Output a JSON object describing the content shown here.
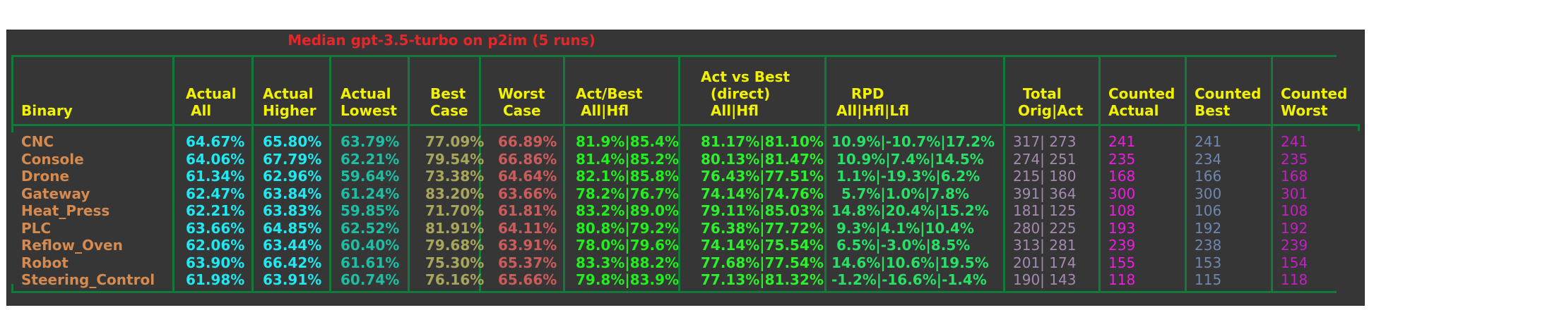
{
  "title": "Median gpt-3.5-turbo on p2im (5 runs)",
  "headers": [
    [
      "Binary"
    ],
    [
      "Actual",
      " All"
    ],
    [
      "Actual",
      "Higher"
    ],
    [
      "Actual",
      "Lowest"
    ],
    [
      " Best",
      " Case"
    ],
    [
      "Worst",
      " Case"
    ],
    [
      "Act/Best",
      " All|Hfl"
    ],
    [
      "Act vs Best",
      "  (direct)",
      "  All|Hfl"
    ],
    [
      "    RPD",
      " All|Hfl|Lfl"
    ],
    [
      "  Total",
      " Orig|Act"
    ],
    [
      "Counted",
      "Actual"
    ],
    [
      "Counted",
      "Best"
    ],
    [
      "Counted",
      "Worst"
    ]
  ],
  "rows": [
    {
      "binary": "CNC",
      "actual_all": "64.67%",
      "actual_higher": "65.80%",
      "actual_lowest": "63.79%",
      "best_case": "77.09%",
      "worst_case": "66.89%",
      "act_best": "81.9%|85.4%",
      "act_vs_best": "81.17%|81.10%",
      "rpd": "10.9%|-10.7%|17.2%",
      "total": "317| 273",
      "counted_actual": "241",
      "counted_best": "241",
      "counted_worst": "241"
    },
    {
      "binary": "Console",
      "actual_all": "64.06%",
      "actual_higher": "67.79%",
      "actual_lowest": "62.21%",
      "best_case": "79.54%",
      "worst_case": "66.86%",
      "act_best": "81.4%|85.2%",
      "act_vs_best": "80.13%|81.47%",
      "rpd": " 10.9%|7.4%|14.5%",
      "total": "274| 251",
      "counted_actual": "235",
      "counted_best": "234",
      "counted_worst": "235"
    },
    {
      "binary": "Drone",
      "actual_all": "61.34%",
      "actual_higher": "62.96%",
      "actual_lowest": "59.64%",
      "best_case": "73.38%",
      "worst_case": "64.64%",
      "act_best": "82.1%|85.8%",
      "act_vs_best": "76.43%|77.51%",
      "rpd": " 1.1%|-19.3%|6.2%",
      "total": "215| 180",
      "counted_actual": "168",
      "counted_best": "166",
      "counted_worst": "168"
    },
    {
      "binary": "Gateway",
      "actual_all": "62.47%",
      "actual_higher": "63.84%",
      "actual_lowest": "61.24%",
      "best_case": "83.20%",
      "worst_case": "63.66%",
      "act_best": "78.2%|76.7%",
      "act_vs_best": "74.14%|74.76%",
      "rpd": "  5.7%|1.0%|7.8%",
      "total": "391| 364",
      "counted_actual": "300",
      "counted_best": "300",
      "counted_worst": "301"
    },
    {
      "binary": "Heat_Press",
      "actual_all": "62.21%",
      "actual_higher": "63.83%",
      "actual_lowest": "59.85%",
      "best_case": "71.70%",
      "worst_case": "61.81%",
      "act_best": "83.2%|89.0%",
      "act_vs_best": "79.11%|85.03%",
      "rpd": "14.8%|20.4%|15.2%",
      "total": "181| 125",
      "counted_actual": "108",
      "counted_best": "106",
      "counted_worst": "108"
    },
    {
      "binary": "PLC",
      "actual_all": "63.66%",
      "actual_higher": "64.85%",
      "actual_lowest": "62.52%",
      "best_case": "81.91%",
      "worst_case": "64.11%",
      "act_best": "80.8%|79.2%",
      "act_vs_best": "76.38%|77.72%",
      "rpd": " 9.3%|4.1%|10.4%",
      "total": "280| 225",
      "counted_actual": "193",
      "counted_best": "192",
      "counted_worst": "192"
    },
    {
      "binary": "Reflow_Oven",
      "actual_all": "62.06%",
      "actual_higher": "63.44%",
      "actual_lowest": "60.40%",
      "best_case": "79.68%",
      "worst_case": "63.91%",
      "act_best": "78.0%|79.6%",
      "act_vs_best": "74.14%|75.54%",
      "rpd": " 6.5%|-3.0%|8.5%",
      "total": "313| 281",
      "counted_actual": "239",
      "counted_best": "238",
      "counted_worst": "239"
    },
    {
      "binary": "Robot",
      "actual_all": "63.90%",
      "actual_higher": "66.42%",
      "actual_lowest": "61.61%",
      "best_case": "75.30%",
      "worst_case": "65.37%",
      "act_best": "83.3%|88.2%",
      "act_vs_best": "77.68%|77.54%",
      "rpd": "14.6%|10.6%|19.5%",
      "total": "201| 174",
      "counted_actual": "155",
      "counted_best": "153",
      "counted_worst": "154"
    },
    {
      "binary": "Steering_Control",
      "actual_all": "61.98%",
      "actual_higher": "63.91%",
      "actual_lowest": "60.74%",
      "best_case": "76.16%",
      "worst_case": "65.66%",
      "act_best": "79.8%|83.9%",
      "act_vs_best": "77.13%|81.32%",
      "rpd": "-1.2%|-16.6%|-1.4%",
      "total": "190| 143",
      "counted_actual": "118",
      "counted_best": "115",
      "counted_worst": "118"
    }
  ]
}
